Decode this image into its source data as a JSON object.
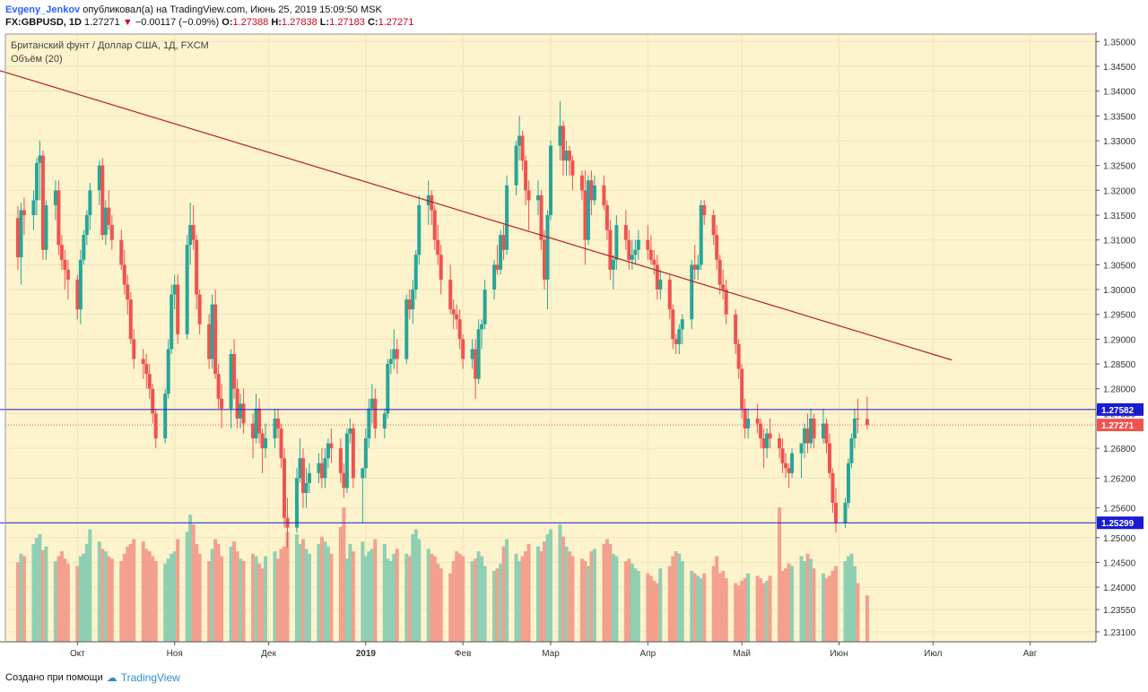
{
  "header": {
    "author": "Evgeny_Jenkov",
    "published_text": "опубликовал(а) на TradingView.com, Июнь 25, 2019 15:09:50 MSK",
    "symbol": "FX:GBPUSD, 1D",
    "last_price": "1.27271",
    "change": "−0.00117 (−0.09%)",
    "o_label": "O:",
    "o_value": "1.27388",
    "h_label": "H:",
    "h_value": "1.27838",
    "l_label": "L:",
    "l_value": "1.27183",
    "c_label": "C:",
    "c_value": "1.27271"
  },
  "footer": {
    "created_text": "Создано при помощи",
    "brand": "TradingView"
  },
  "colors": {
    "background": "#fdf3cc",
    "up": "#26a69a",
    "down": "#ef5350",
    "up_volume": "#8fcfb4",
    "down_volume": "#f4a08e",
    "trendline": "#b22222",
    "hline": "#1a1ad4",
    "last_price": "#ef5350",
    "grid": "#f0e6bb"
  },
  "chart_data": {
    "type": "candlestick",
    "title": "Британский фунт / Доллар США, 1Д, FXCM",
    "indicator": "Объём (20)",
    "ylim": [
      1.229,
      1.3515
    ],
    "y_ticks": [
      "1.35000",
      "1.34500",
      "1.34000",
      "1.33500",
      "1.33000",
      "1.32500",
      "1.32000",
      "1.31500",
      "1.31000",
      "1.30500",
      "1.30000",
      "1.29500",
      "1.29000",
      "1.28500",
      "1.28000",
      "1.27500",
      "1.26800",
      "1.26200",
      "1.25600",
      "1.25000",
      "1.24500",
      "1.24000",
      "1.23550",
      "1.23100"
    ],
    "x_ticks": [
      "Окт",
      "Ноя",
      "Дек",
      "2019",
      "Фев",
      "Мар",
      "Апр",
      "Май",
      "Июн",
      "Июл",
      "Авг"
    ],
    "x_tick_days": [
      23,
      54,
      84,
      115,
      146,
      174,
      205,
      235,
      266,
      296,
      327
    ],
    "x_range_days": [
      0,
      348
    ],
    "horizontal_levels": [
      {
        "value": 1.27582,
        "label": "1.27582"
      },
      {
        "value": 1.25299,
        "label": "1.25299"
      }
    ],
    "last_price_line": {
      "value": 1.27271,
      "label": "1.27271"
    },
    "trendline": {
      "from": [
        "2018-07-27",
        1.3507
      ],
      "to": [
        "2019-06-30",
        1.2858
      ]
    },
    "start_date": "2018-09-05",
    "candles": [
      [
        1.3144,
        1.3168,
        1.304,
        1.3065
      ],
      [
        1.3065,
        1.3175,
        1.301,
        1.316
      ],
      [
        1.316,
        1.3185,
        1.311,
        1.315
      ],
      [
        1.315,
        1.32,
        1.312,
        1.318
      ],
      [
        1.318,
        1.3265,
        1.315,
        1.3255
      ],
      [
        1.3255,
        1.33,
        1.318,
        1.327
      ],
      [
        1.327,
        1.328,
        1.306,
        1.308
      ],
      [
        1.308,
        1.318,
        1.306,
        1.317
      ],
      [
        1.317,
        1.322,
        1.314,
        1.32
      ],
      [
        1.32,
        1.322,
        1.307,
        1.309
      ],
      [
        1.309,
        1.311,
        1.304,
        1.306
      ],
      [
        1.306,
        1.308,
        1.3,
        1.304
      ],
      [
        1.304,
        1.306,
        1.298,
        1.302
      ],
      [
        1.302,
        1.303,
        1.294,
        1.296
      ],
      [
        1.296,
        1.308,
        1.293,
        1.306
      ],
      [
        1.306,
        1.312,
        1.305,
        1.311
      ],
      [
        1.311,
        1.316,
        1.309,
        1.315
      ],
      [
        1.315,
        1.3215,
        1.312,
        1.32
      ],
      [
        1.32,
        1.326,
        1.317,
        1.325
      ],
      [
        1.325,
        1.3265,
        1.31,
        1.311
      ],
      [
        1.311,
        1.318,
        1.309,
        1.3165
      ],
      [
        1.3165,
        1.32,
        1.312,
        1.313
      ],
      [
        1.313,
        1.315,
        1.308,
        1.31
      ],
      [
        1.31,
        1.312,
        1.304,
        1.305
      ],
      [
        1.305,
        1.308,
        1.299,
        1.301
      ],
      [
        1.301,
        1.303,
        1.295,
        1.298
      ],
      [
        1.298,
        1.2995,
        1.289,
        1.29
      ],
      [
        1.29,
        1.292,
        1.284,
        1.286
      ],
      [
        1.286,
        1.288,
        1.282,
        1.285
      ],
      [
        1.285,
        1.287,
        1.28,
        1.283
      ],
      [
        1.283,
        1.285,
        1.278,
        1.28
      ],
      [
        1.28,
        1.281,
        1.273,
        1.275
      ],
      [
        1.275,
        1.276,
        1.268,
        1.27
      ],
      [
        1.27,
        1.28,
        1.269,
        1.279
      ],
      [
        1.279,
        1.29,
        1.278,
        1.288
      ],
      [
        1.288,
        1.301,
        1.287,
        1.299
      ],
      [
        1.299,
        1.303,
        1.296,
        1.301
      ],
      [
        1.301,
        1.303,
        1.289,
        1.291
      ],
      [
        1.291,
        1.311,
        1.29,
        1.309
      ],
      [
        1.309,
        1.3175,
        1.305,
        1.313
      ],
      [
        1.313,
        1.317,
        1.308,
        1.31
      ],
      [
        1.31,
        1.311,
        1.296,
        1.299
      ],
      [
        1.299,
        1.3,
        1.291,
        1.293
      ],
      [
        1.293,
        1.295,
        1.284,
        1.286
      ],
      [
        1.286,
        1.299,
        1.284,
        1.297
      ],
      [
        1.297,
        1.3,
        1.282,
        1.283
      ],
      [
        1.283,
        1.285,
        1.276,
        1.278
      ],
      [
        1.278,
        1.281,
        1.272,
        1.276
      ],
      [
        1.276,
        1.288,
        1.272,
        1.287
      ],
      [
        1.287,
        1.29,
        1.278,
        1.28
      ],
      [
        1.28,
        1.282,
        1.272,
        1.274
      ],
      [
        1.274,
        1.279,
        1.272,
        1.277
      ],
      [
        1.277,
        1.28,
        1.271,
        1.273
      ],
      [
        1.273,
        1.275,
        1.266,
        1.27
      ],
      [
        1.27,
        1.279,
        1.269,
        1.276
      ],
      [
        1.276,
        1.278,
        1.269,
        1.271
      ],
      [
        1.271,
        1.272,
        1.263,
        1.268
      ],
      [
        1.268,
        1.273,
        1.266,
        1.27
      ],
      [
        1.27,
        1.276,
        1.268,
        1.274
      ],
      [
        1.274,
        1.276,
        1.27,
        1.272
      ],
      [
        1.272,
        1.273,
        1.264,
        1.266
      ],
      [
        1.266,
        1.268,
        1.252,
        1.254
      ],
      [
        1.254,
        1.258,
        1.248,
        1.252
      ],
      [
        1.252,
        1.264,
        1.251,
        1.262
      ],
      [
        1.262,
        1.27,
        1.261,
        1.266
      ],
      [
        1.266,
        1.268,
        1.256,
        1.259
      ],
      [
        1.259,
        1.264,
        1.256,
        1.261
      ],
      [
        1.261,
        1.265,
        1.259,
        1.263
      ],
      [
        1.263,
        1.267,
        1.261,
        1.265
      ],
      [
        1.265,
        1.268,
        1.26,
        1.262
      ],
      [
        1.262,
        1.268,
        1.26,
        1.266
      ],
      [
        1.266,
        1.27,
        1.264,
        1.269
      ],
      [
        1.269,
        1.272,
        1.265,
        1.268
      ],
      [
        1.268,
        1.27,
        1.261,
        1.263
      ],
      [
        1.263,
        1.265,
        1.258,
        1.26
      ],
      [
        1.26,
        1.272,
        1.259,
        1.271
      ],
      [
        1.271,
        1.274,
        1.269,
        1.272
      ],
      [
        1.272,
        1.273,
        1.26,
        1.262
      ],
      [
        1.262,
        1.264,
        1.253,
        1.264
      ],
      [
        1.264,
        1.272,
        1.262,
        1.27
      ],
      [
        1.27,
        1.278,
        1.268,
        1.276
      ],
      [
        1.276,
        1.281,
        1.273,
        1.278
      ],
      [
        1.278,
        1.28,
        1.27,
        1.272
      ],
      [
        1.272,
        1.276,
        1.27,
        1.275
      ],
      [
        1.275,
        1.286,
        1.274,
        1.285
      ],
      [
        1.285,
        1.288,
        1.283,
        1.286
      ],
      [
        1.286,
        1.292,
        1.284,
        1.288
      ],
      [
        1.288,
        1.29,
        1.283,
        1.286
      ],
      [
        1.286,
        1.299,
        1.285,
        1.298
      ],
      [
        1.298,
        1.3,
        1.294,
        1.296
      ],
      [
        1.296,
        1.302,
        1.293,
        1.3
      ],
      [
        1.3,
        1.308,
        1.298,
        1.307
      ],
      [
        1.307,
        1.319,
        1.305,
        1.317
      ],
      [
        1.317,
        1.322,
        1.313,
        1.319
      ],
      [
        1.319,
        1.32,
        1.313,
        1.316
      ],
      [
        1.316,
        1.317,
        1.308,
        1.31
      ],
      [
        1.31,
        1.313,
        1.305,
        1.307
      ],
      [
        1.307,
        1.309,
        1.299,
        1.302
      ],
      [
        1.302,
        1.305,
        1.295,
        1.296
      ],
      [
        1.296,
        1.298,
        1.292,
        1.295
      ],
      [
        1.295,
        1.297,
        1.292,
        1.294
      ],
      [
        1.294,
        1.296,
        1.288,
        1.29
      ],
      [
        1.29,
        1.291,
        1.284,
        1.286
      ],
      [
        1.286,
        1.29,
        1.284,
        1.288
      ],
      [
        1.288,
        1.29,
        1.278,
        1.282
      ],
      [
        1.282,
        1.294,
        1.281,
        1.292
      ],
      [
        1.292,
        1.294,
        1.288,
        1.293
      ],
      [
        1.293,
        1.302,
        1.292,
        1.3
      ],
      [
        1.3,
        1.306,
        1.298,
        1.305
      ],
      [
        1.305,
        1.309,
        1.303,
        1.304
      ],
      [
        1.304,
        1.312,
        1.303,
        1.311
      ],
      [
        1.311,
        1.313,
        1.306,
        1.308
      ],
      [
        1.308,
        1.323,
        1.307,
        1.321
      ],
      [
        1.321,
        1.33,
        1.319,
        1.329
      ],
      [
        1.329,
        1.335,
        1.326,
        1.331
      ],
      [
        1.331,
        1.332,
        1.324,
        1.326
      ],
      [
        1.326,
        1.327,
        1.317,
        1.32
      ],
      [
        1.32,
        1.322,
        1.312,
        1.318
      ],
      [
        1.318,
        1.322,
        1.315,
        1.319
      ],
      [
        1.319,
        1.32,
        1.308,
        1.31
      ],
      [
        1.31,
        1.312,
        1.3,
        1.302
      ],
      [
        1.302,
        1.316,
        1.296,
        1.315
      ],
      [
        1.315,
        1.33,
        1.314,
        1.329
      ],
      [
        1.329,
        1.338,
        1.326,
        1.333
      ],
      [
        1.333,
        1.334,
        1.323,
        1.326
      ],
      [
        1.326,
        1.33,
        1.323,
        1.328
      ],
      [
        1.328,
        1.329,
        1.323,
        1.326
      ],
      [
        1.326,
        1.327,
        1.32,
        1.323
      ],
      [
        1.323,
        1.324,
        1.318,
        1.32
      ],
      [
        1.32,
        1.324,
        1.305,
        1.31
      ],
      [
        1.31,
        1.323,
        1.309,
        1.322
      ],
      [
        1.322,
        1.324,
        1.315,
        1.318
      ],
      [
        1.318,
        1.323,
        1.317,
        1.321
      ],
      [
        1.321,
        1.323,
        1.316,
        1.317
      ],
      [
        1.317,
        1.318,
        1.31,
        1.312
      ],
      [
        1.312,
        1.314,
        1.302,
        1.304
      ],
      [
        1.304,
        1.307,
        1.3,
        1.306
      ],
      [
        1.306,
        1.315,
        1.304,
        1.313
      ],
      [
        1.313,
        1.316,
        1.308,
        1.31
      ],
      [
        1.31,
        1.312,
        1.304,
        1.306
      ],
      [
        1.306,
        1.31,
        1.304,
        1.307
      ],
      [
        1.307,
        1.31,
        1.305,
        1.308
      ],
      [
        1.308,
        1.312,
        1.306,
        1.31
      ],
      [
        1.31,
        1.313,
        1.306,
        1.308
      ],
      [
        1.308,
        1.311,
        1.305,
        1.306
      ],
      [
        1.306,
        1.308,
        1.303,
        1.305
      ],
      [
        1.305,
        1.307,
        1.298,
        1.3
      ],
      [
        1.3,
        1.304,
        1.298,
        1.302
      ],
      [
        1.302,
        1.303,
        1.294,
        1.296
      ],
      [
        1.296,
        1.297,
        1.288,
        1.29
      ],
      [
        1.29,
        1.291,
        1.287,
        1.289
      ],
      [
        1.289,
        1.293,
        1.287,
        1.292
      ],
      [
        1.292,
        1.295,
        1.289,
        1.294
      ],
      [
        1.294,
        1.306,
        1.292,
        1.305
      ],
      [
        1.305,
        1.309,
        1.302,
        1.304
      ],
      [
        1.304,
        1.307,
        1.302,
        1.305
      ],
      [
        1.305,
        1.318,
        1.304,
        1.317
      ],
      [
        1.317,
        1.318,
        1.313,
        1.315
      ],
      [
        1.315,
        1.316,
        1.309,
        1.311
      ],
      [
        1.311,
        1.313,
        1.304,
        1.306
      ],
      [
        1.306,
        1.307,
        1.299,
        1.301
      ],
      [
        1.301,
        1.304,
        1.298,
        1.3
      ],
      [
        1.3,
        1.302,
        1.293,
        1.295
      ],
      [
        1.295,
        1.296,
        1.287,
        1.289
      ],
      [
        1.289,
        1.29,
        1.282,
        1.284
      ],
      [
        1.284,
        1.285,
        1.274,
        1.276
      ],
      [
        1.276,
        1.278,
        1.27,
        1.272
      ],
      [
        1.272,
        1.276,
        1.27,
        1.274
      ],
      [
        1.274,
        1.277,
        1.271,
        1.273
      ],
      [
        1.273,
        1.274,
        1.268,
        1.27
      ],
      [
        1.27,
        1.272,
        1.264,
        1.268
      ],
      [
        1.268,
        1.272,
        1.266,
        1.271
      ],
      [
        1.271,
        1.274,
        1.268,
        1.27
      ],
      [
        1.27,
        1.271,
        1.266,
        1.268
      ],
      [
        1.268,
        1.27,
        1.263,
        1.265
      ],
      [
        1.265,
        1.267,
        1.262,
        1.264
      ],
      [
        1.264,
        1.265,
        1.26,
        1.263
      ],
      [
        1.263,
        1.268,
        1.262,
        1.267
      ],
      [
        1.267,
        1.269,
        1.262,
        1.269
      ],
      [
        1.269,
        1.273,
        1.266,
        1.272
      ],
      [
        1.272,
        1.275,
        1.267,
        1.269
      ],
      [
        1.269,
        1.276,
        1.268,
        1.274
      ],
      [
        1.274,
        1.275,
        1.268,
        1.27
      ],
      [
        1.27,
        1.276,
        1.269,
        1.273
      ],
      [
        1.273,
        1.274,
        1.267,
        1.269
      ],
      [
        1.269,
        1.271,
        1.262,
        1.263
      ],
      [
        1.263,
        1.264,
        1.255,
        1.257
      ],
      [
        1.257,
        1.26,
        1.251,
        1.253
      ],
      [
        1.253,
        1.258,
        1.252,
        1.257
      ],
      [
        1.257,
        1.266,
        1.256,
        1.265
      ],
      [
        1.265,
        1.271,
        1.264,
        1.27
      ],
      [
        1.27,
        1.276,
        1.268,
        1.274
      ],
      [
        1.274,
        1.278,
        1.271,
        1.2739
      ],
      [
        1.2739,
        1.2784,
        1.2718,
        1.2727
      ]
    ],
    "volumes": [
      65,
      72,
      70,
      80,
      85,
      88,
      75,
      78,
      66,
      70,
      74,
      68,
      64,
      62,
      70,
      72,
      80,
      92,
      82,
      76,
      74,
      70,
      68,
      66,
      72,
      78,
      80,
      84,
      82,
      76,
      74,
      70,
      66,
      64,
      68,
      72,
      74,
      84,
      90,
      104,
      96,
      80,
      72,
      66,
      76,
      84,
      80,
      70,
      78,
      82,
      74,
      68,
      66,
      72,
      70,
      64,
      60,
      70,
      74,
      68,
      76,
      78,
      90,
      88,
      80,
      84,
      76,
      72,
      80,
      86,
      82,
      78,
      72,
      94,
      110,
      68,
      80,
      74,
      82,
      70,
      74,
      76,
      84,
      80,
      68,
      66,
      72,
      76,
      72,
      70,
      88,
      92,
      84,
      76,
      72,
      70,
      64,
      60,
      56,
      66,
      74,
      72,
      70,
      66,
      68,
      74,
      70,
      62,
      58,
      60,
      64,
      78,
      84,
      72,
      66,
      70,
      74,
      80,
      78,
      74,
      82,
      88,
      92,
      96,
      86,
      78,
      74,
      70,
      68,
      66,
      62,
      74,
      76,
      80,
      84,
      80,
      72,
      70,
      66,
      68,
      64,
      60,
      58,
      56,
      54,
      50,
      48,
      60,
      62,
      70,
      74,
      72,
      66,
      58,
      56,
      54,
      52,
      56,
      62,
      70,
      56,
      58,
      52,
      48,
      46,
      50,
      52,
      56,
      54,
      52,
      48,
      50,
      54,
      110,
      58,
      60,
      64,
      62,
      70,
      66,
      72,
      68,
      60,
      56,
      52,
      54,
      58,
      62,
      66,
      70,
      72,
      62,
      48,
      38
    ]
  }
}
